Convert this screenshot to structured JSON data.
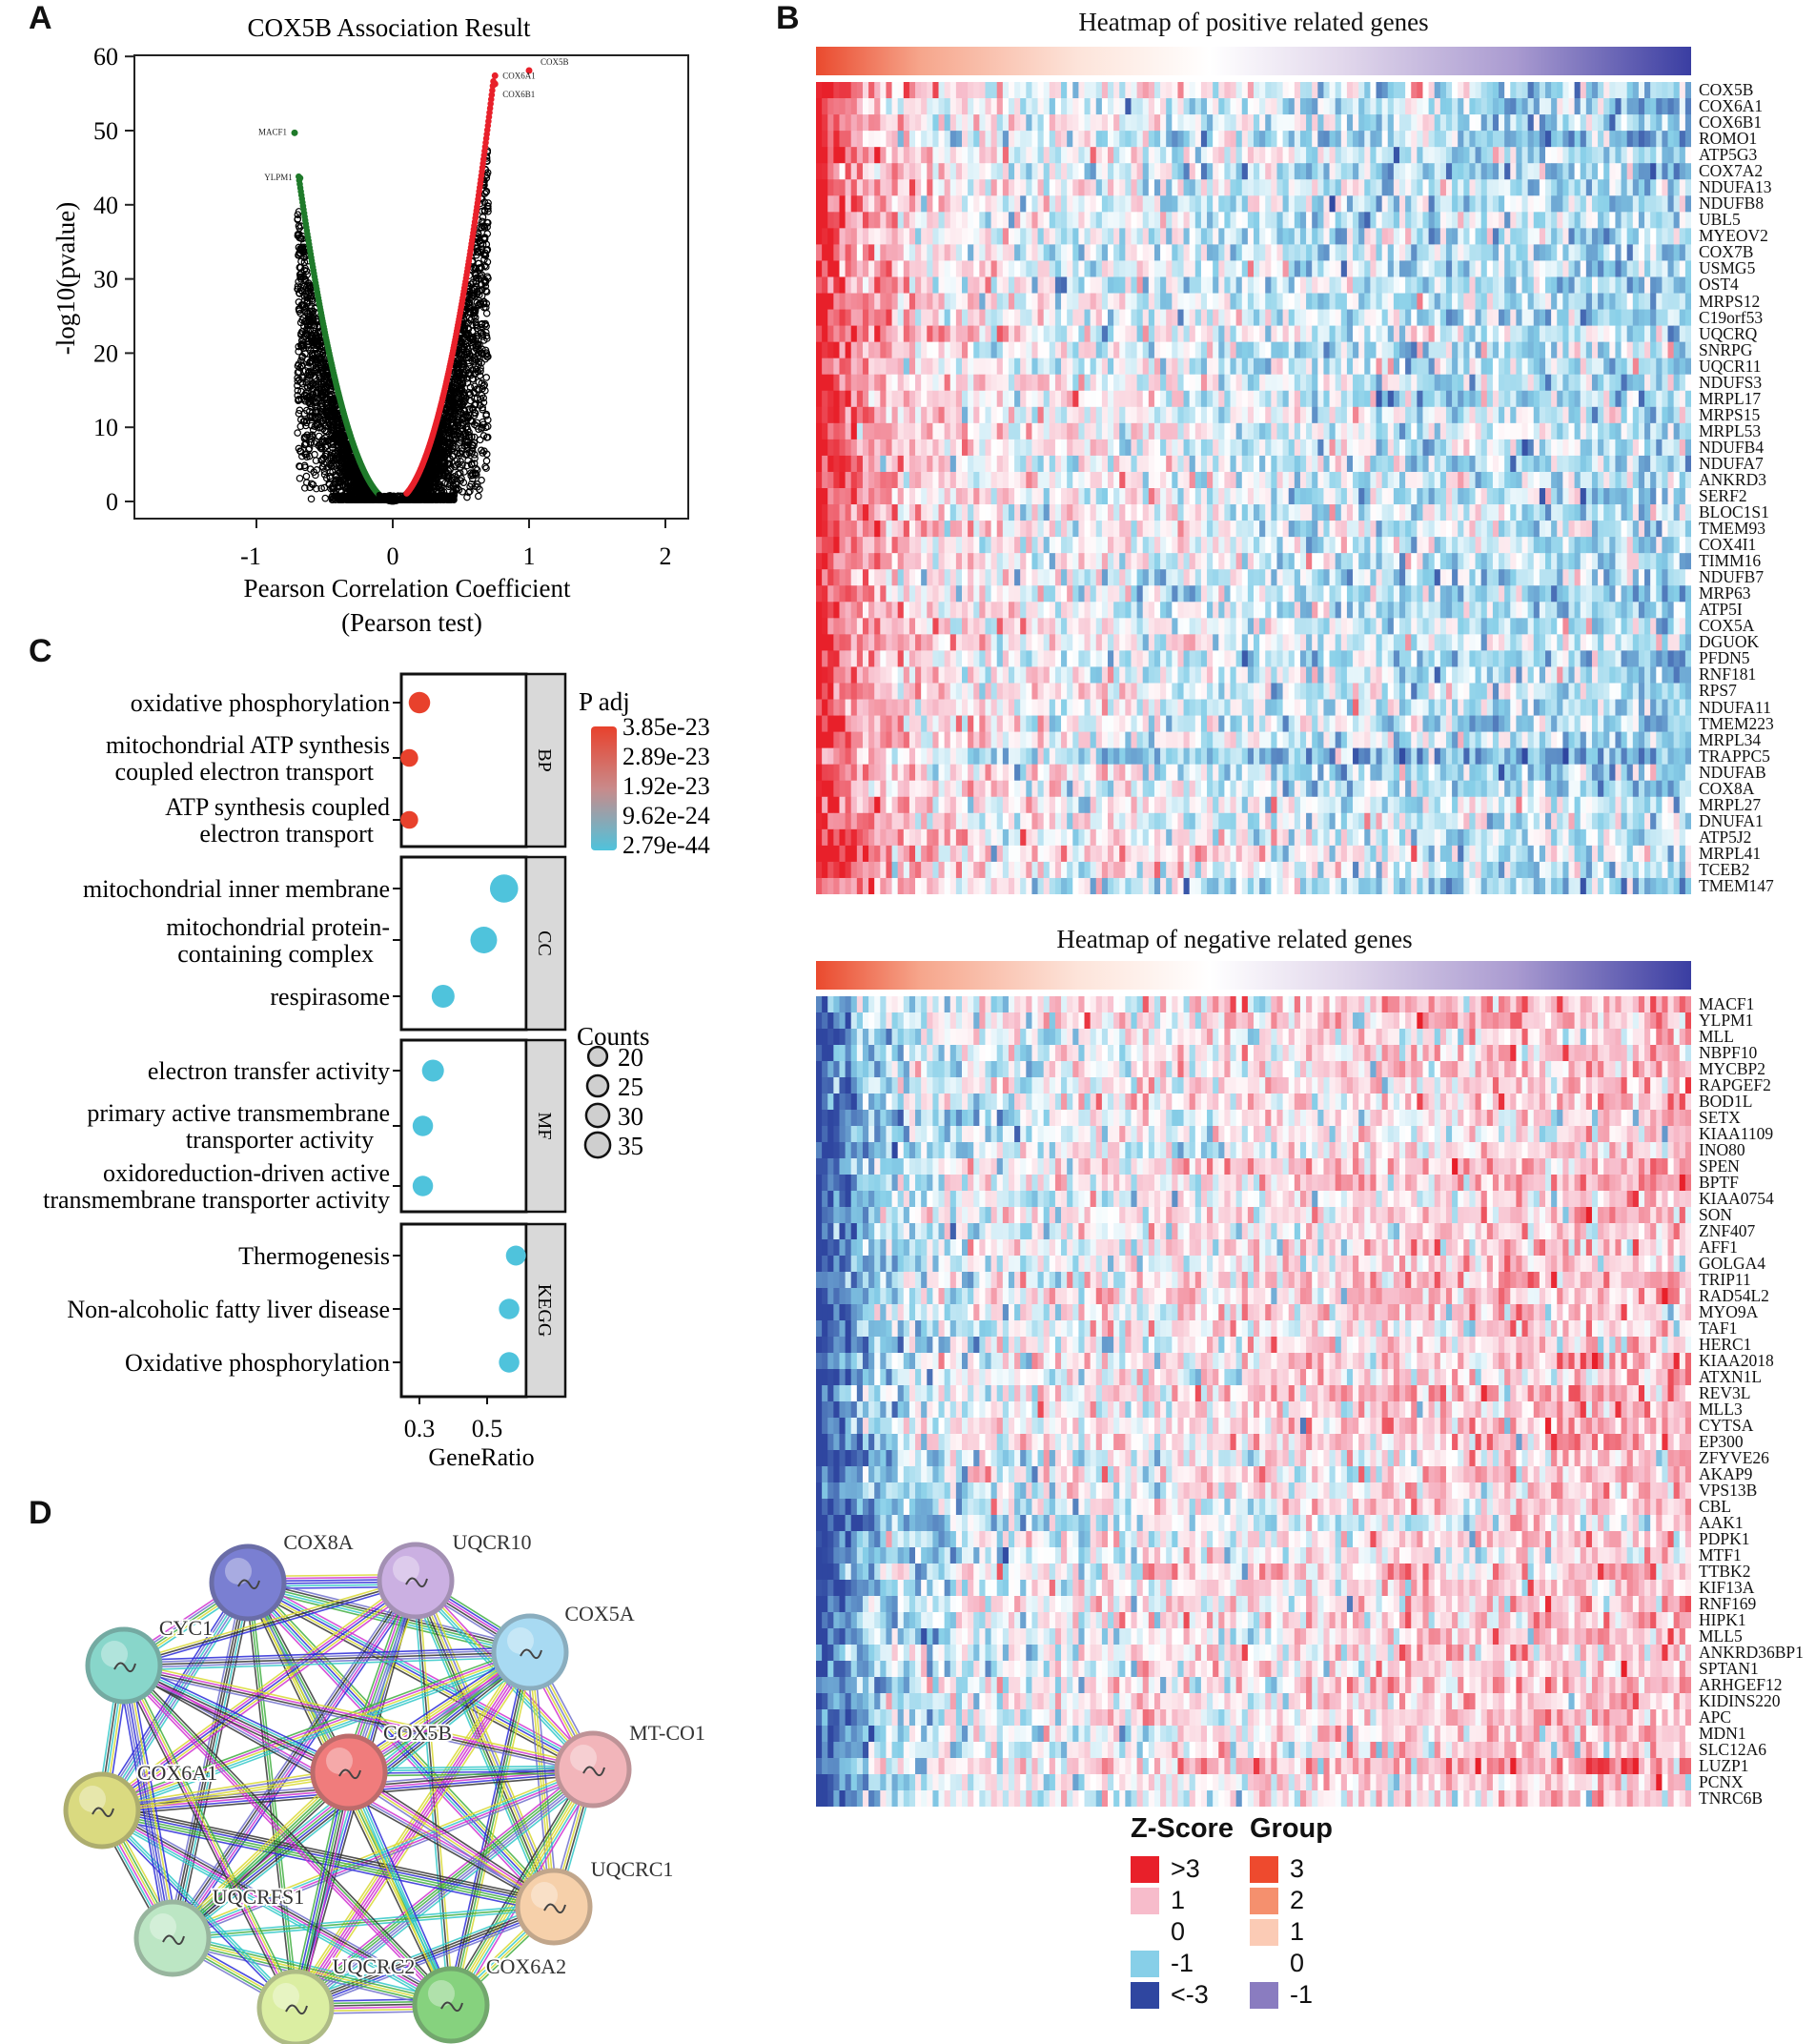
{
  "panels": {
    "a": "A",
    "b": "B",
    "c": "C",
    "d": "D"
  },
  "chart_data": [
    {
      "panel": "A",
      "type": "scatter",
      "title": "COX5B Association Result",
      "xlabel": "Pearson Correlation Coefficient",
      "xlabel2": "(Pearson test)",
      "ylabel": "-log10(pvalue)",
      "xlim": [
        -1.5,
        2.2
      ],
      "ylim": [
        -2,
        61
      ],
      "xticks": [
        -1,
        0,
        1,
        2
      ],
      "yticks": [
        0,
        10,
        20,
        30,
        40,
        50,
        60
      ],
      "colors": {
        "positive": "#e8202a",
        "negative": "#1f7a2a",
        "other": "#000000"
      },
      "labeled_points": [
        {
          "gene": "COX5B",
          "x": 1.0,
          "y": 58.1
        },
        {
          "gene": "COX6A1",
          "x": 0.75,
          "y": 57.4
        },
        {
          "gene": "COX6B1",
          "x": 0.75,
          "y": 56.3
        },
        {
          "gene": "MACF1",
          "x": -0.72,
          "y": 49.7
        },
        {
          "gene": "YLPM1",
          "x": -0.68,
          "y": 43.6
        }
      ]
    },
    {
      "panel": "B",
      "type": "heatmap",
      "title": "Heatmap of positive related genes",
      "rows": [
        "COX5B",
        "COX6A1",
        "COX6B1",
        "ROMO1",
        "ATP5G3",
        "COX7A2",
        "NDUFA13",
        "NDUFB8",
        "UBL5",
        "MYEOV2",
        "COX7B",
        "USMG5",
        "OST4",
        "MRPS12",
        "C19orf53",
        "UQCRQ",
        "SNRPG",
        "UQCR11",
        "NDUFS3",
        "MRPL17",
        "MRPS15",
        "MRPL53",
        "NDUFB4",
        "NDUFA7",
        "ANKRD3",
        "SERF2",
        "BLOC1S1",
        "TMEM93",
        "COX4I1",
        "TIMM16",
        "NDUFB7",
        "MRP63",
        "ATP5I",
        "COX5A",
        "DGUOK",
        "PFDN5",
        "RNF181",
        "RPS7",
        "NDUFA11",
        "TMEM223",
        "MRPL34",
        "TRAPPC5",
        "NDUFAB",
        "COX8A",
        "MRPL27",
        "DNUFA1",
        "ATP5J2",
        "MRPL41",
        "TCEB2",
        "TMEM147"
      ],
      "pattern": "high in left (high COX5B) samples, low in right"
    },
    {
      "panel": "B",
      "type": "heatmap",
      "title": "Heatmap of negative related genes",
      "rows": [
        "MACF1",
        "YLPM1",
        "MLL",
        "NBPF10",
        "MYCBP2",
        "RAPGEF2",
        "BOD1L",
        "SETX",
        "KIAA1109",
        "INO80",
        "SPEN",
        "BPTF",
        "KIAA0754",
        "SON",
        "ZNF407",
        "AFF1",
        "GOLGA4",
        "TRIP11",
        "RAD54L2",
        "MYO9A",
        "TAF1",
        "HERC1",
        "KIAA2018",
        "ATXN1L",
        "REV3L",
        "MLL3",
        "CYTSA",
        "EP300",
        "ZFYVE26",
        "AKAP9",
        "VPS13B",
        "CBL",
        "AAK1",
        "PDPK1",
        "MTF1",
        "TTBK2",
        "KIF13A",
        "RNF169",
        "HIPK1",
        "MLL5",
        "ANKRD36BP1",
        "SPTAN1",
        "ARHGEF12",
        "KIDINS220",
        "APC",
        "MDN1",
        "SLC12A6",
        "LUZP1",
        "PCNX",
        "TNRC6B"
      ],
      "pattern": "low in left (high COX5B) samples, high in right"
    },
    {
      "panel": "C",
      "type": "scatter",
      "xlabel": "GeneRatio",
      "xticks": [
        "0.3",
        "0.5"
      ],
      "facets": [
        {
          "name": "BP",
          "terms": [
            {
              "label": [
                "oxidative phosphorylation"
              ],
              "gene_ratio": 0.3,
              "count": 22,
              "padj_group": "high"
            },
            {
              "label": [
                "mitochondrial ATP synthesis",
                "coupled electron transport"
              ],
              "gene_ratio": 0.27,
              "count": 15,
              "padj_group": "high"
            },
            {
              "label": [
                "ATP synthesis coupled",
                "electron transport"
              ],
              "gene_ratio": 0.27,
              "count": 15,
              "padj_group": "high"
            }
          ]
        },
        {
          "name": "CC",
          "terms": [
            {
              "label": [
                "mitochondrial inner membrane"
              ],
              "gene_ratio": 0.55,
              "count": 38,
              "padj_group": "low"
            },
            {
              "label": [
                "mitochondrial protein-",
                "containing complex"
              ],
              "gene_ratio": 0.49,
              "count": 34,
              "padj_group": "low"
            },
            {
              "label": [
                "respirasome"
              ],
              "gene_ratio": 0.37,
              "count": 25,
              "padj_group": "low"
            }
          ]
        },
        {
          "name": "MF",
          "terms": [
            {
              "label": [
                "electron transfer activity"
              ],
              "gene_ratio": 0.34,
              "count": 23,
              "padj_group": "low"
            },
            {
              "label": [
                "primary active transmembrane",
                "transporter activity"
              ],
              "gene_ratio": 0.31,
              "count": 20,
              "padj_group": "low"
            },
            {
              "label": [
                "oxidoreduction-driven active",
                "transmembrane transporter activity"
              ],
              "gene_ratio": 0.31,
              "count": 20,
              "padj_group": "low"
            }
          ]
        },
        {
          "name": "KEGG",
          "terms": [
            {
              "label": [
                "Thermogenesis"
              ],
              "gene_ratio": 0.585,
              "count": 19,
              "padj_group": "low"
            },
            {
              "label": [
                "Non-alcoholic fatty liver disease"
              ],
              "gene_ratio": 0.565,
              "count": 20,
              "padj_group": "low"
            },
            {
              "label": [
                "Oxidative phosphorylation"
              ],
              "gene_ratio": 0.565,
              "count": 20,
              "padj_group": "low"
            }
          ]
        }
      ],
      "color_legend": {
        "title": "P adj",
        "labels": [
          "3.85e-23",
          "2.89e-23",
          "1.92e-23",
          "9.62e-24",
          "2.79e-44"
        ],
        "high_color": "#e8412c",
        "low_color": "#4fc3dc"
      },
      "size_legend": {
        "title": "Counts",
        "labels": [
          "20",
          "25",
          "30",
          "35"
        ]
      }
    }
  ],
  "heatmap_legend": {
    "zscore_title": "Z-Score",
    "zscore": [
      {
        "label": ">3",
        "color": "#e8202a"
      },
      {
        "label": "1",
        "color": "#f7bccb"
      },
      {
        "label": "0",
        "color": "#ffffff"
      },
      {
        "label": "-1",
        "color": "#87cfe8"
      },
      {
        "label": "<-3",
        "color": "#2f46a0"
      }
    ],
    "group_title": "Group",
    "group": [
      {
        "label": "3",
        "color": "#ee4a2e"
      },
      {
        "label": "2",
        "color": "#f5906e"
      },
      {
        "label": "1",
        "color": "#fbcbb5"
      },
      {
        "label": "0",
        "color": "#ffffff"
      },
      {
        "label": "-1",
        "color": "#8a7cc0"
      }
    ]
  },
  "network": {
    "nodes": [
      {
        "name": "COX8A",
        "color": "#7a7fd2"
      },
      {
        "name": "UQCR10",
        "color": "#cbb0e2"
      },
      {
        "name": "COX5A",
        "color": "#a8daf2"
      },
      {
        "name": "MT-CO1",
        "color": "#f2b5ba"
      },
      {
        "name": "UQCRC1",
        "color": "#f6d0aa"
      },
      {
        "name": "COX6A2",
        "color": "#86d27e"
      },
      {
        "name": "UQCRC2",
        "color": "#dbeea2"
      },
      {
        "name": "UQCRFS1",
        "color": "#bce6c4"
      },
      {
        "name": "COX6A1",
        "color": "#dada80"
      },
      {
        "name": "CYC1",
        "color": "#88d6ca"
      },
      {
        "name": "COX5B",
        "color": "#f07c7c"
      }
    ],
    "edge_colors": [
      "#2a2ad8",
      "#d030d0",
      "#3fae3f",
      "#d8d830",
      "#30c8c8",
      "#333333",
      "#7070cc"
    ]
  }
}
